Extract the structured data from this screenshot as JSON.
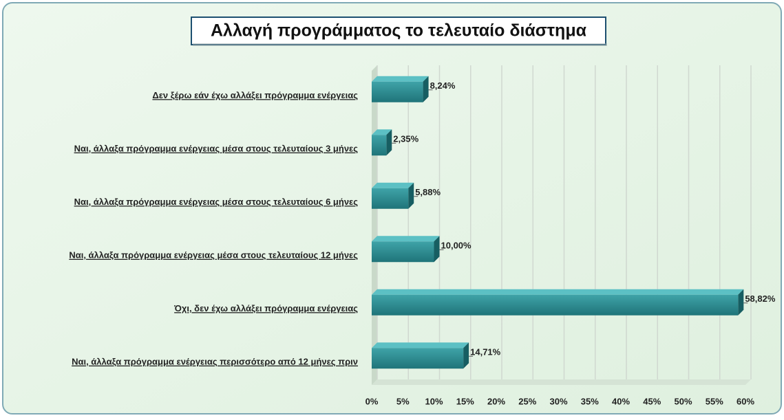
{
  "chart_data": {
    "type": "bar",
    "orientation": "horizontal",
    "title": "Αλλαγή προγράμματος το τελευταίο διάστημα",
    "categories": [
      "Δεν ξέρω εάν έχω αλλάξει πρόγραμμα ενέργειας",
      "Ναι, άλλαξα πρόγραμμα ενέργειας μέσα στους τελευταίους 3 μήνες",
      "Ναι, άλλαξα πρόγραμμα ενέργειας μέσα στους τελευταίους 6 μήνες",
      "Ναι, άλλαξα πρόγραμμα ενέργειας μέσα στους τελευταίους 12 μήνες",
      "Όχι, δεν έχω αλλάξει πρόγραμμα ενέργειας",
      "Ναι, άλλαξα πρόγραμμα ενέργειας περισσότερο από 12 μήνες πριν"
    ],
    "values": [
      8.24,
      2.35,
      5.88,
      10.0,
      58.82,
      14.71
    ],
    "value_labels": [
      "8,24%",
      "2,35%",
      "5,88%",
      "10,00%",
      "58,82%",
      "14,71%"
    ],
    "color": "#2a8a8f",
    "xlim": [
      0,
      60
    ],
    "xticks": [
      {
        "value": 0,
        "label": "0%"
      },
      {
        "value": 5,
        "label": "5%"
      },
      {
        "value": 10,
        "label": "10%"
      },
      {
        "value": 15,
        "label": "15%"
      },
      {
        "value": 20,
        "label": "20%"
      },
      {
        "value": 25,
        "label": "25%"
      },
      {
        "value": 30,
        "label": "30%"
      },
      {
        "value": 35,
        "label": "35%"
      },
      {
        "value": 40,
        "label": "40%"
      },
      {
        "value": 45,
        "label": "45%"
      },
      {
        "value": 50,
        "label": "50%"
      },
      {
        "value": 55,
        "label": "55%"
      },
      {
        "value": 60,
        "label": "60%"
      }
    ],
    "grid": true
  }
}
